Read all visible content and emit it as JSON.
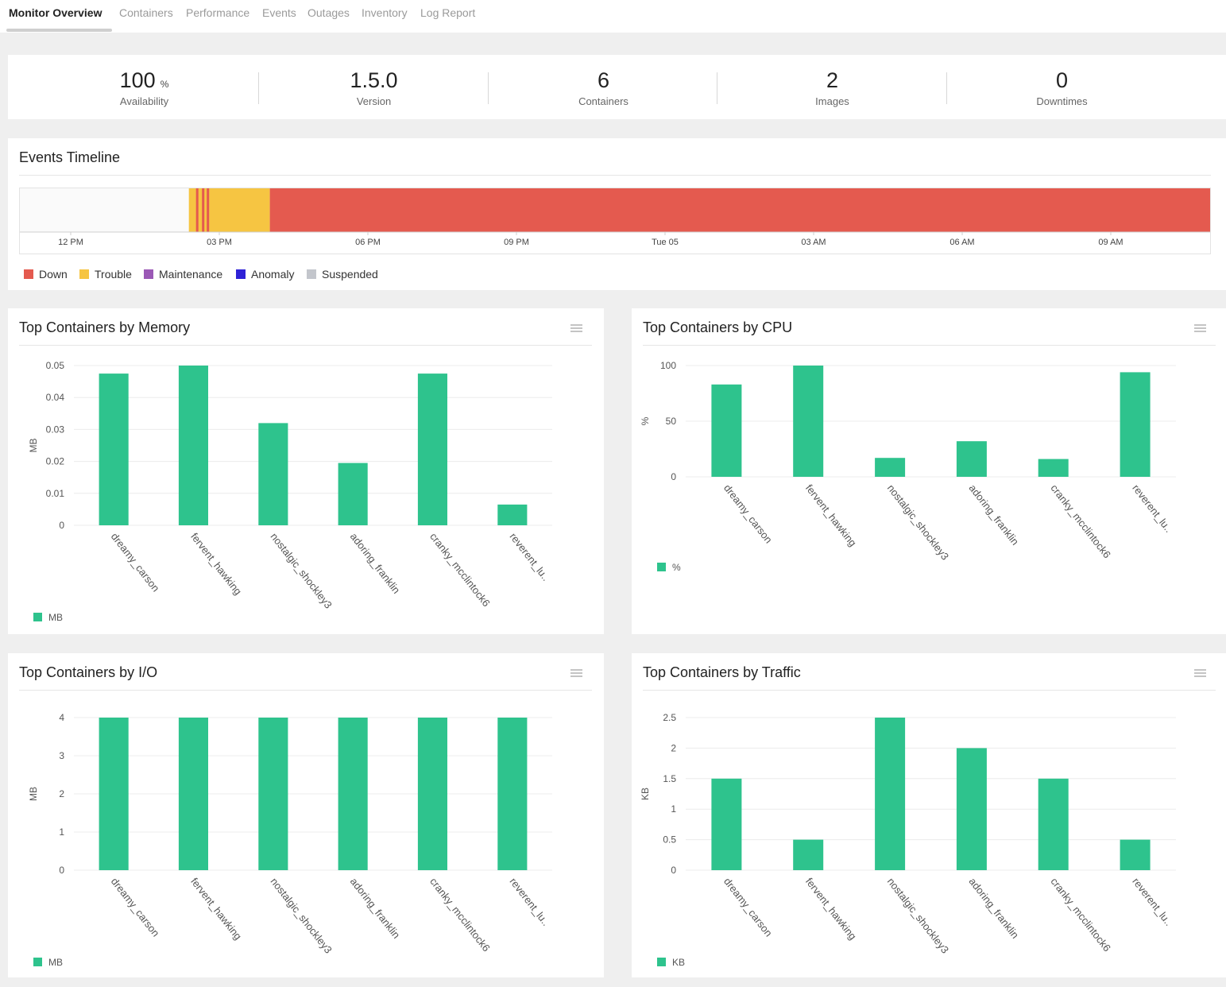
{
  "nav": {
    "tabs": [
      {
        "label": "Monitor Overview",
        "active": true
      },
      {
        "label": "Containers"
      },
      {
        "label": "Performance"
      },
      {
        "label": "Events"
      },
      {
        "label": "Outages"
      },
      {
        "label": "Inventory"
      },
      {
        "label": "Log Report"
      }
    ]
  },
  "summary": {
    "availability": {
      "value": "100",
      "unit": "%",
      "label": "Availability"
    },
    "version": {
      "value": "1.5.0",
      "label": "Version"
    },
    "containers": {
      "value": "6",
      "label": "Containers"
    },
    "images": {
      "value": "2",
      "label": "Images"
    },
    "downtimes": {
      "value": "0",
      "label": "Downtimes"
    }
  },
  "events_timeline": {
    "title": "Events Timeline",
    "ticks": [
      "12 PM",
      "03 PM",
      "06 PM",
      "09 PM",
      "Tue 05",
      "03 AM",
      "06 AM",
      "09 AM"
    ],
    "segments": [
      {
        "status": "none",
        "start": 0.0,
        "end": 0.142
      },
      {
        "status": "trouble",
        "start": 0.142,
        "end": 0.21
      },
      {
        "status": "down",
        "start": 0.148,
        "end": 0.15
      },
      {
        "status": "down",
        "start": 0.153,
        "end": 0.155
      },
      {
        "status": "down",
        "start": 0.157,
        "end": 0.159
      },
      {
        "status": "down",
        "start": 0.21,
        "end": 1.0
      }
    ],
    "legend": [
      {
        "label": "Down",
        "color": "#e45a4f"
      },
      {
        "label": "Trouble",
        "color": "#f6c542"
      },
      {
        "label": "Maintenance",
        "color": "#9b59b6"
      },
      {
        "label": "Anomaly",
        "color": "#2f22d6"
      },
      {
        "label": "Suspended",
        "color": "#c3c6cc"
      }
    ],
    "colors": {
      "none": "#fafafa",
      "trouble": "#f6c542",
      "down": "#e45a4f"
    }
  },
  "charts": {
    "memory": {
      "title": "Top Containers by Memory"
    },
    "cpu": {
      "title": "Top Containers by CPU"
    },
    "io": {
      "title": "Top Containers by I/O"
    },
    "traffic": {
      "title": "Top Containers by Traffic"
    }
  },
  "chart_data": [
    {
      "type": "bar",
      "title": "Top Containers by Memory",
      "categories": [
        "dreamy_carson",
        "fervent_hawking",
        "nostalgic_shockley3",
        "adoring_franklin",
        "cranky_mcclintock6",
        "reverent_lu.."
      ],
      "series": [
        {
          "name": "MB",
          "values": [
            0.0475,
            0.05,
            0.032,
            0.0195,
            0.0475,
            0.0065
          ]
        }
      ],
      "ylabel": "MB",
      "ylim": [
        0,
        0.05
      ],
      "yticks": [
        "0",
        "0.01",
        "0.02",
        "0.03",
        "0.04",
        "0.05"
      ],
      "grid": true,
      "legend": "bottom-left",
      "color": "#2ec38d"
    },
    {
      "type": "bar",
      "title": "Top Containers by CPU",
      "categories": [
        "dreamy_carson",
        "fervent_hawking",
        "nostalgic_shockley3",
        "adoring_franklin",
        "cranky_mcclintock6",
        "reverent_lu.."
      ],
      "series": [
        {
          "name": "%",
          "values": [
            83,
            100,
            17,
            32,
            16,
            94
          ]
        }
      ],
      "ylabel": "%",
      "ylim": [
        0,
        100
      ],
      "yticks": [
        "0",
        "50",
        "100"
      ],
      "grid": true,
      "legend": "bottom-left",
      "color": "#2ec38d"
    },
    {
      "type": "bar",
      "title": "Top Containers by I/O",
      "categories": [
        "dreamy_carson",
        "fervent_hawking",
        "nostalgic_shockley3",
        "adoring_franklin",
        "cranky_mcclintock6",
        "reverent_lu.."
      ],
      "series": [
        {
          "name": "MB",
          "values": [
            4,
            4,
            4,
            4,
            4,
            4
          ]
        }
      ],
      "ylabel": "MB",
      "ylim": [
        0,
        4
      ],
      "yticks": [
        "0",
        "1",
        "2",
        "3",
        "4"
      ],
      "grid": true,
      "legend": "bottom-left",
      "color": "#2ec38d"
    },
    {
      "type": "bar",
      "title": "Top Containers by Traffic",
      "categories": [
        "dreamy_carson",
        "fervent_hawking",
        "nostalgic_shockley3",
        "adoring_franklin",
        "cranky_mcclintock6",
        "reverent_lu.."
      ],
      "series": [
        {
          "name": "KB",
          "values": [
            1.5,
            0.5,
            2.5,
            2,
            1.5,
            0.5
          ]
        }
      ],
      "ylabel": "KB",
      "ylim": [
        0,
        2.5
      ],
      "yticks": [
        "0",
        "0.5",
        "1",
        "1.5",
        "2",
        "2.5"
      ],
      "grid": true,
      "legend": "bottom-left",
      "color": "#2ec38d"
    }
  ]
}
